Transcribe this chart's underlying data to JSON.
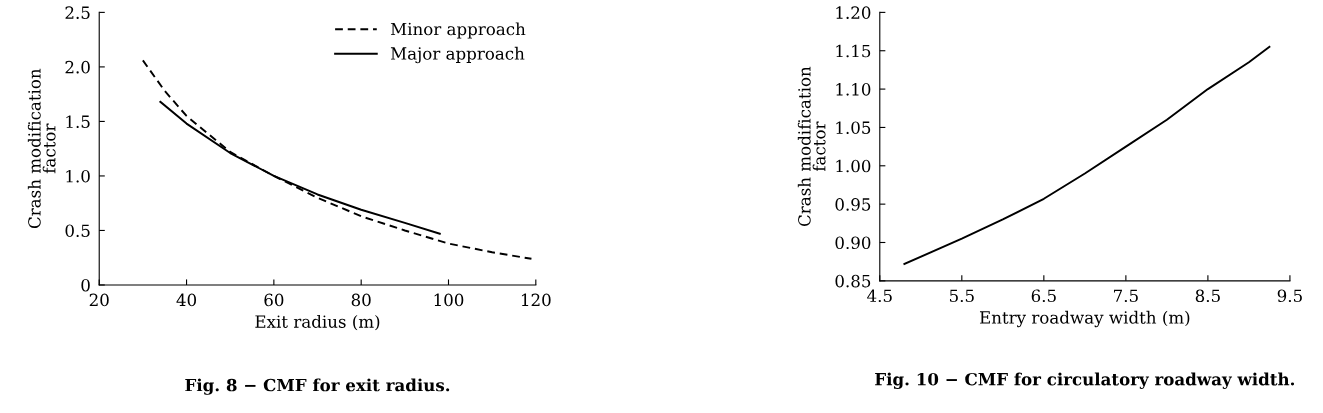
{
  "chart_data": [
    {
      "type": "line",
      "title": "Fig. 8 − CMF for exit radius.",
      "xlabel": "Exit radius (m)",
      "ylabel": "Crash modification\nfactor",
      "xlim": [
        20,
        120
      ],
      "xticks": [
        20,
        40,
        60,
        80,
        100,
        120
      ],
      "ylim": [
        0,
        2.5
      ],
      "yticks": [
        {
          "value": 0,
          "label": "0"
        },
        {
          "value": 0.5,
          "label": "0.5"
        },
        {
          "value": 1.0,
          "label": "1.0"
        },
        {
          "value": 1.5,
          "label": "1.5"
        },
        {
          "value": 2.0,
          "label": "2.0"
        },
        {
          "value": 2.5,
          "label": "2.5"
        }
      ],
      "legend": "top right",
      "grid": false,
      "series": [
        {
          "name": "Minor approach",
          "color": "#000000",
          "line_style": "dashed",
          "x": [
            30,
            35,
            40,
            50,
            60,
            70,
            80,
            90,
            100,
            110,
            119
          ],
          "values": [
            2.06,
            1.78,
            1.55,
            1.22,
            1.0,
            0.8,
            0.63,
            0.5,
            0.38,
            0.3,
            0.24
          ]
        },
        {
          "name": "Major approach",
          "color": "#000000",
          "line_style": "solid",
          "x": [
            34,
            40,
            50,
            60,
            70,
            80,
            90,
            98
          ],
          "values": [
            1.68,
            1.48,
            1.21,
            1.0,
            0.83,
            0.69,
            0.57,
            0.47
          ]
        }
      ]
    },
    {
      "type": "line",
      "title": "Fig. 10 − CMF for circulatory roadway width.",
      "xlabel": "Entry roadway width (m)",
      "ylabel": "Crash modification\nfactor",
      "xlim": [
        4.5,
        9.5
      ],
      "xticks": [
        4.5,
        5.5,
        6.5,
        7.5,
        8.5,
        9.5
      ],
      "ylim": [
        0.85,
        1.2
      ],
      "yticks": [
        {
          "value": 0.85,
          "label": "0.85"
        },
        {
          "value": 0.9,
          "label": "0.90"
        },
        {
          "value": 0.95,
          "label": "0.95"
        },
        {
          "value": 1.0,
          "label": "1.00"
        },
        {
          "value": 1.05,
          "label": "1.05"
        },
        {
          "value": 1.1,
          "label": "1.10"
        },
        {
          "value": 1.15,
          "label": "1.15"
        },
        {
          "value": 1.2,
          "label": "1.20"
        }
      ],
      "grid": false,
      "series": [
        {
          "color": "#000000",
          "line_style": "solid",
          "x": [
            4.8,
            5.5,
            6.0,
            6.5,
            7.0,
            7.5,
            8.0,
            8.5,
            9.0,
            9.25
          ],
          "values": [
            0.872,
            0.905,
            0.93,
            0.957,
            0.99,
            1.025,
            1.06,
            1.1,
            1.135,
            1.155
          ]
        }
      ]
    }
  ]
}
